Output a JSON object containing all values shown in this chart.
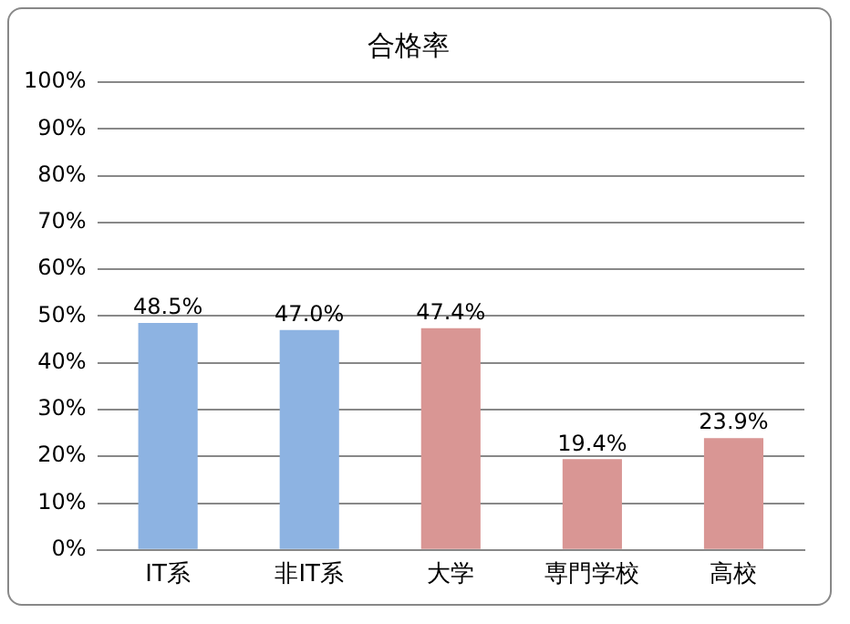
{
  "chart_data": {
    "type": "bar",
    "title": "合格率",
    "categories": [
      "IT系",
      "非IT系",
      "大学",
      "専門学校",
      "高校"
    ],
    "values": [
      48.5,
      47.0,
      47.4,
      19.4,
      23.9
    ],
    "colors": [
      "#8db3e2",
      "#8db3e2",
      "#d99694",
      "#d99694",
      "#d99694"
    ],
    "value_labels": [
      "48.5%",
      "47.0%",
      "47.4%",
      "19.4%",
      "23.9%"
    ],
    "ylim": [
      0,
      100
    ],
    "yticks": [
      {
        "value": 0,
        "label": "0%"
      },
      {
        "value": 10,
        "label": "10%"
      },
      {
        "value": 20,
        "label": "20%"
      },
      {
        "value": 30,
        "label": "30%"
      },
      {
        "value": 40,
        "label": "40%"
      },
      {
        "value": 50,
        "label": "50%"
      },
      {
        "value": 60,
        "label": "60%"
      },
      {
        "value": 70,
        "label": "70%"
      },
      {
        "value": 80,
        "label": "80%"
      },
      {
        "value": 90,
        "label": "90%"
      },
      {
        "value": 100,
        "label": "100%"
      }
    ],
    "grid": "y",
    "legend": false
  }
}
